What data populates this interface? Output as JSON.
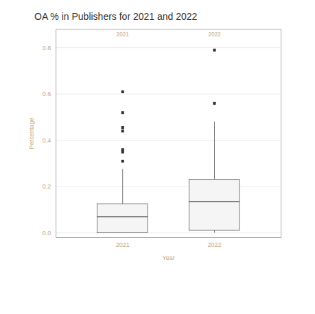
{
  "chart_data": {
    "type": "box",
    "title": "OA % in Publishers for 2021 and 2022",
    "xlabel": "Year",
    "ylabel": "Percentage",
    "categories": [
      "2021",
      "2022"
    ],
    "whislo": [
      0.0,
      0.0
    ],
    "q1": [
      0.0,
      0.01
    ],
    "med": [
      0.07,
      0.135
    ],
    "q3": [
      0.125,
      0.23
    ],
    "whishi": [
      0.275,
      0.48
    ],
    "fliers": [
      [
        0.31,
        0.36,
        0.52,
        0.44,
        0.455,
        0.35,
        0.61
      ],
      [
        0.56,
        0.79
      ]
    ],
    "ylim": [
      -0.02,
      0.88
    ],
    "yticks": [
      {
        "value": 0.0,
        "label": "0.0"
      },
      0.2,
      0.4,
      0.6,
      0.8
    ],
    "grid": true,
    "color": "#333333",
    "marker": "square"
  }
}
